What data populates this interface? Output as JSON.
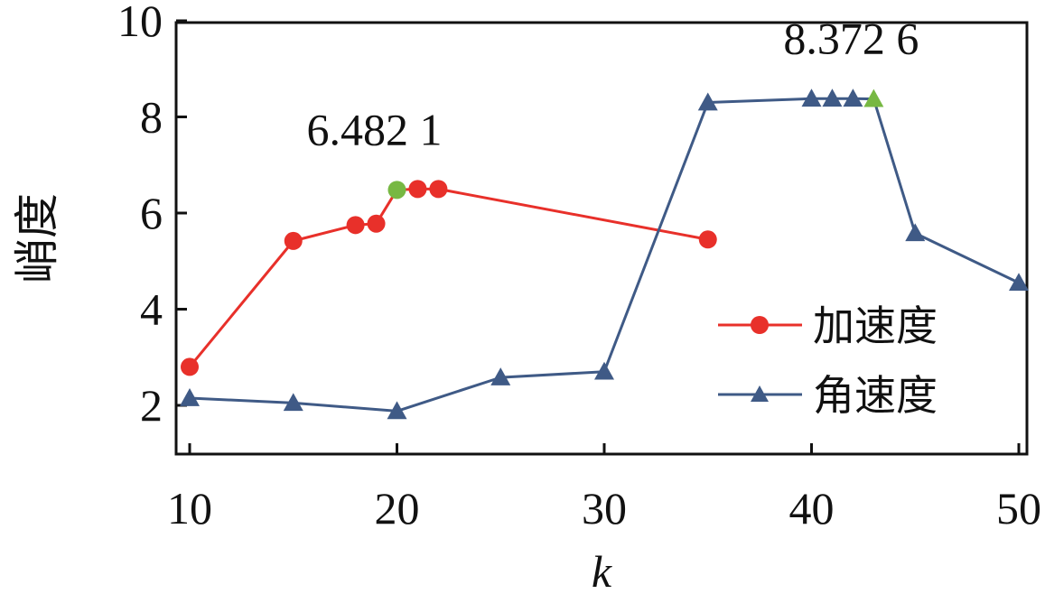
{
  "chart_data": {
    "type": "line",
    "xlabel": "k",
    "ylabel": "峭度",
    "xlim": [
      10,
      50
    ],
    "ylim": [
      1,
      10
    ],
    "xticks": [
      10,
      20,
      30,
      40,
      50
    ],
    "yticks": [
      2,
      4,
      6,
      8,
      10
    ],
    "xtick_labels": [
      "10",
      "20",
      "30",
      "40",
      "50"
    ],
    "ytick_labels": [
      "2",
      "4",
      "6",
      "8",
      "10"
    ],
    "grid": false,
    "legend_position": "bottom-right",
    "series": [
      {
        "name": "加速度",
        "marker": "circle",
        "color": "#e8302a",
        "x": [
          10,
          15,
          18,
          19,
          20,
          21,
          22,
          35
        ],
        "y": [
          2.8,
          5.42,
          5.75,
          5.78,
          6.4821,
          6.5,
          6.5,
          5.45
        ]
      },
      {
        "name": "角速度",
        "marker": "triangle",
        "color": "#3f5a86",
        "x": [
          10,
          15,
          20,
          25,
          30,
          35,
          40,
          41,
          42,
          43,
          45,
          50
        ],
        "y": [
          2.15,
          2.05,
          1.88,
          2.58,
          2.7,
          8.3,
          8.38,
          8.38,
          8.38,
          8.3726,
          5.58,
          4.55
        ]
      }
    ],
    "annotations": [
      {
        "text": "6.482 1",
        "series": 0,
        "x": 20,
        "y": 6.4821,
        "highlight_color": "#77b843"
      },
      {
        "text": "8.372 6",
        "series": 1,
        "x": 43,
        "y": 8.3726,
        "highlight_color": "#77b843"
      }
    ]
  }
}
